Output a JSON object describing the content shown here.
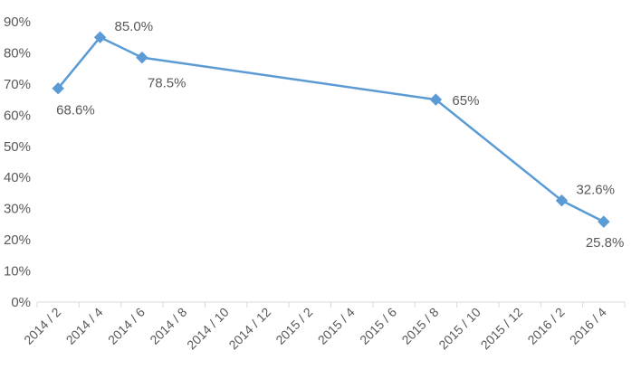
{
  "chart_data": {
    "type": "line",
    "categories": [
      "2014 / 2",
      "2014 / 4",
      "2014 / 6",
      "2014 / 8",
      "2014 / 10",
      "2014 / 12",
      "2015 / 2",
      "2015 / 4",
      "2015 / 6",
      "2015 / 8",
      "2015 / 10",
      "2015 / 12",
      "2016 / 2",
      "2016 / 4"
    ],
    "y_ticks": [
      "0%",
      "10%",
      "20%",
      "30%",
      "40%",
      "50%",
      "60%",
      "70%",
      "80%",
      "90%"
    ],
    "ylim": [
      0,
      90
    ],
    "grid": false,
    "colors": {
      "line": "#5b9bd5",
      "marker": "#5b9bd5",
      "axis": "#d9d9d9",
      "text": "#595959"
    },
    "series": [
      {
        "points": [
          {
            "x": "2014 / 2",
            "y": 68.6,
            "label": "68.6%",
            "label_pos": "below"
          },
          {
            "x": "2014 / 4",
            "y": 85.0,
            "label": "85.0%",
            "label_pos": "above-right"
          },
          {
            "x": "2014 / 6",
            "y": 78.5,
            "label": "78.5%",
            "label_pos": "below-right"
          },
          {
            "x": "2015 / 8",
            "y": 65.0,
            "label": "65%",
            "label_pos": "right"
          },
          {
            "x": "2016 / 2",
            "y": 32.6,
            "label": "32.6%",
            "label_pos": "above-right"
          },
          {
            "x": "2016 / 4",
            "y": 25.8,
            "label": "25.8%",
            "label_pos": "below"
          }
        ]
      }
    ]
  }
}
